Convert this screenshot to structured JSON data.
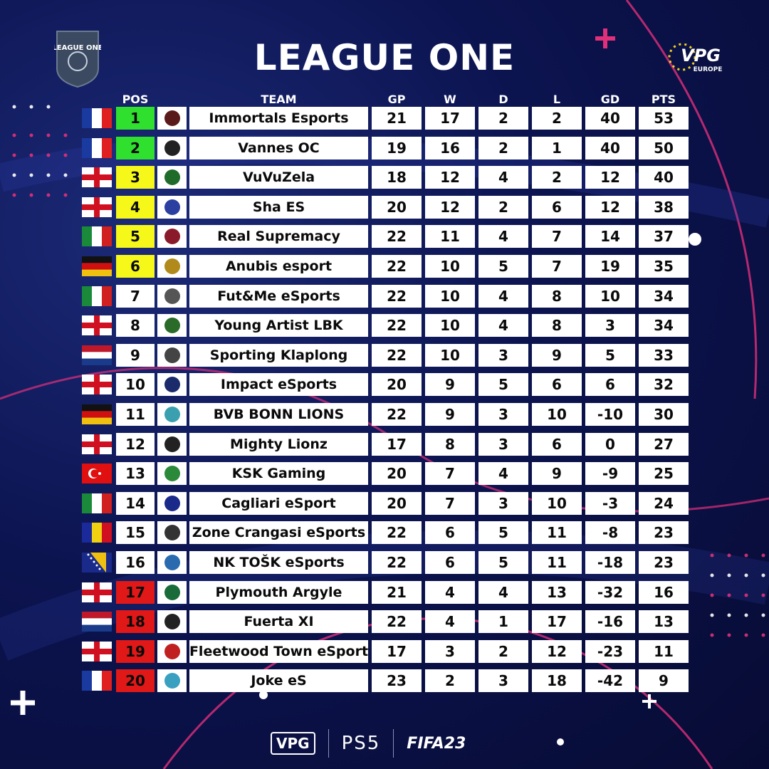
{
  "title": "LEAGUE ONE",
  "league_logo_text": "LEAGUE ONE",
  "brand_logo_text": "VPG",
  "brand_logo_subtext": "EUROPE",
  "headers": {
    "pos": "POS",
    "team": "TEAM",
    "gp": "GP",
    "w": "W",
    "d": "D",
    "l": "L",
    "gd": "GD",
    "pts": "PTS"
  },
  "colors": {
    "promotion": "#2fe02f",
    "playoff": "#f6f81a",
    "relegation": "#e01818",
    "neutral": "#ffffff"
  },
  "rows": [
    {
      "pos": "1",
      "team": "Immortals Esports",
      "gp": "21",
      "w": "17",
      "d": "2",
      "l": "2",
      "gd": "40",
      "pts": "53",
      "flag": "france",
      "zone": "promotion",
      "crest": "#5a1a1a"
    },
    {
      "pos": "2",
      "team": "Vannes OC",
      "gp": "19",
      "w": "16",
      "d": "2",
      "l": "1",
      "gd": "40",
      "pts": "50",
      "flag": "france",
      "zone": "promotion",
      "crest": "#222222"
    },
    {
      "pos": "3",
      "team": "VuVuZela",
      "gp": "18",
      "w": "12",
      "d": "4",
      "l": "2",
      "gd": "12",
      "pts": "40",
      "flag": "england",
      "zone": "playoff",
      "crest": "#1f6b2a"
    },
    {
      "pos": "4",
      "team": "Sha ES",
      "gp": "20",
      "w": "12",
      "d": "2",
      "l": "6",
      "gd": "12",
      "pts": "38",
      "flag": "england",
      "zone": "playoff",
      "crest": "#2a3fa0"
    },
    {
      "pos": "5",
      "team": "Real Supremacy",
      "gp": "22",
      "w": "11",
      "d": "4",
      "l": "7",
      "gd": "14",
      "pts": "37",
      "flag": "italy",
      "zone": "playoff",
      "crest": "#8a1a2a"
    },
    {
      "pos": "6",
      "team": "Anubis esport",
      "gp": "22",
      "w": "10",
      "d": "5",
      "l": "7",
      "gd": "19",
      "pts": "35",
      "flag": "germany",
      "zone": "playoff",
      "crest": "#b08a1a"
    },
    {
      "pos": "7",
      "team": "Fut&Me eSports",
      "gp": "22",
      "w": "10",
      "d": "4",
      "l": "8",
      "gd": "10",
      "pts": "34",
      "flag": "italy",
      "zone": "neutral",
      "crest": "#555555"
    },
    {
      "pos": "8",
      "team": "Young Artist LBK",
      "gp": "22",
      "w": "10",
      "d": "4",
      "l": "8",
      "gd": "3",
      "pts": "34",
      "flag": "england",
      "zone": "neutral",
      "crest": "#2a6b2a"
    },
    {
      "pos": "9",
      "team": "Sporting Klaplong",
      "gp": "22",
      "w": "10",
      "d": "3",
      "l": "9",
      "gd": "5",
      "pts": "33",
      "flag": "netherlands",
      "zone": "neutral",
      "crest": "#444444"
    },
    {
      "pos": "10",
      "team": "Impact eSports",
      "gp": "20",
      "w": "9",
      "d": "5",
      "l": "6",
      "gd": "6",
      "pts": "32",
      "flag": "england",
      "zone": "neutral",
      "crest": "#1a2a6b"
    },
    {
      "pos": "11",
      "team": "BVB BONN LIONS",
      "gp": "22",
      "w": "9",
      "d": "3",
      "l": "10",
      "gd": "-10",
      "pts": "30",
      "flag": "germany",
      "zone": "neutral",
      "crest": "#3aa0b0"
    },
    {
      "pos": "12",
      "team": "Mighty Lionz",
      "gp": "17",
      "w": "8",
      "d": "3",
      "l": "6",
      "gd": "0",
      "pts": "27",
      "flag": "england",
      "zone": "neutral",
      "crest": "#222222"
    },
    {
      "pos": "13",
      "team": "KSK Gaming",
      "gp": "20",
      "w": "7",
      "d": "4",
      "l": "9",
      "gd": "-9",
      "pts": "25",
      "flag": "turkey",
      "zone": "neutral",
      "crest": "#2a8a3a"
    },
    {
      "pos": "14",
      "team": "Cagliari eSport",
      "gp": "20",
      "w": "7",
      "d": "3",
      "l": "10",
      "gd": "-3",
      "pts": "24",
      "flag": "italy",
      "zone": "neutral",
      "crest": "#1a2a8a"
    },
    {
      "pos": "15",
      "team": "Zone Crangasi eSports",
      "gp": "22",
      "w": "6",
      "d": "5",
      "l": "11",
      "gd": "-8",
      "pts": "23",
      "flag": "romania",
      "zone": "neutral",
      "crest": "#333333"
    },
    {
      "pos": "16",
      "team": "NK TOŠK eSports",
      "gp": "22",
      "w": "6",
      "d": "5",
      "l": "11",
      "gd": "-18",
      "pts": "23",
      "flag": "bosnia",
      "zone": "neutral",
      "crest": "#2a6bb0"
    },
    {
      "pos": "17",
      "team": "Plymouth Argyle",
      "gp": "21",
      "w": "4",
      "d": "4",
      "l": "13",
      "gd": "-32",
      "pts": "16",
      "flag": "england",
      "zone": "relegation",
      "crest": "#1a6b3a"
    },
    {
      "pos": "18",
      "team": "Fuerta XI",
      "gp": "22",
      "w": "4",
      "d": "1",
      "l": "17",
      "gd": "-16",
      "pts": "13",
      "flag": "netherlands",
      "zone": "relegation",
      "crest": "#222222"
    },
    {
      "pos": "19",
      "team": "Fleetwood Town eSport",
      "gp": "17",
      "w": "3",
      "d": "2",
      "l": "12",
      "gd": "-23",
      "pts": "11",
      "flag": "england",
      "zone": "relegation",
      "crest": "#c02020"
    },
    {
      "pos": "20",
      "team": "Joke eS",
      "gp": "23",
      "w": "2",
      "d": "3",
      "l": "18",
      "gd": "-42",
      "pts": "9",
      "flag": "france",
      "zone": "relegation",
      "crest": "#3aa0c0"
    }
  ],
  "footer": {
    "vpg": "VPG",
    "ps5": "PS5",
    "fifa": "FIFA23"
  }
}
